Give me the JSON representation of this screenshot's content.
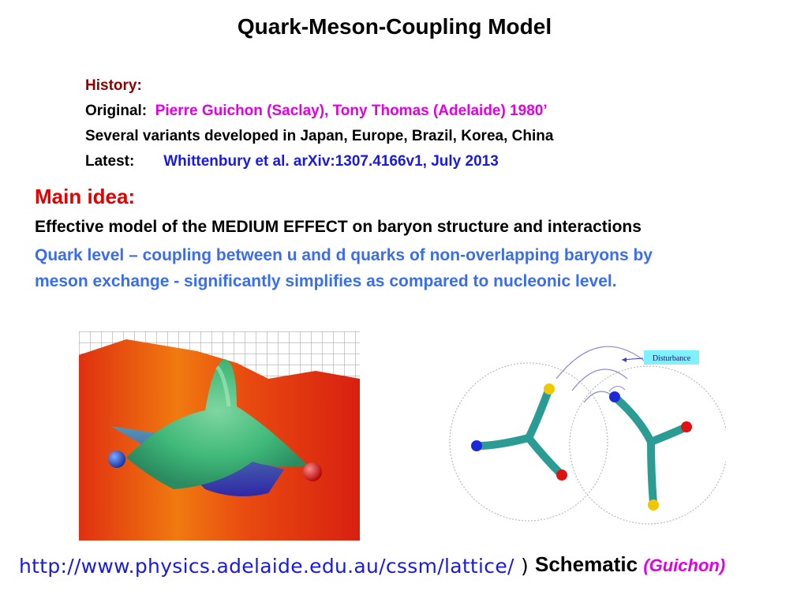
{
  "slide": {
    "title": "Quark-Meson-Coupling Model",
    "history": {
      "heading": "History:",
      "original_label": "Original:",
      "original_value": "Pierre Guichon (Saclay),  Tony Thomas (Adelaide) 1980’",
      "variants": "Several variants developed in Japan, Europe, Brazil, Korea, China",
      "latest_label": "Latest:",
      "latest_value": "Whittenbury et al. arXiv:1307.4166v1, July  2013"
    },
    "main_idea": {
      "heading": "Main idea:",
      "line1": "Effective model of the MEDIUM EFFECT on baryon structure and interactions",
      "line2": "Quark level – coupling between u and d quarks of non-overlapping baryons by",
      "line3": "meson exchange - significantly simplifies as compared to nucleonic level."
    },
    "figure_left": {
      "icon": "lattice-flux-tube-image"
    },
    "figure_right": {
      "icon": "baryon-schematic-diagram",
      "disturbance_label": "Disturbance"
    },
    "url": {
      "text": "http://www.physics.adelaide.edu.au/cssm/lattice/",
      "close_paren": ")"
    },
    "schematic_caption": {
      "label": "Schematic",
      "credit": "(Guichon)"
    }
  },
  "colors": {
    "history_heading": "#8b0000",
    "magenta": "#e000e0",
    "blue": "#1a1adf",
    "main_idea_red": "#e00000",
    "quark_blue": "#3a6ee8",
    "teal": "#2a9c94"
  }
}
